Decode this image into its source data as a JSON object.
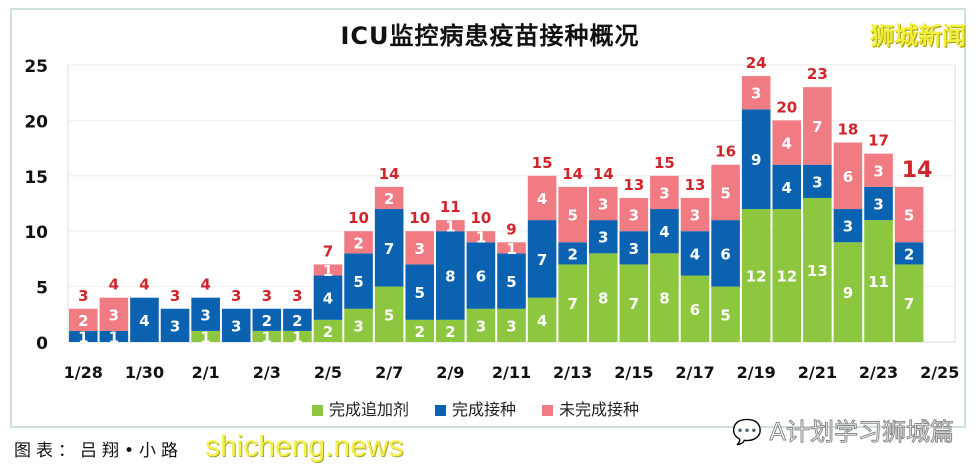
{
  "chart_data": {
    "type": "bar",
    "stacked": true,
    "title": "ICU监控病患疫苗接种概况",
    "categories": [
      "1/28",
      "1/29",
      "1/30",
      "1/31",
      "2/1",
      "2/2",
      "2/3",
      "2/4",
      "2/5",
      "2/6",
      "2/7",
      "2/8",
      "2/9",
      "2/10",
      "2/11",
      "2/12",
      "2/13",
      "2/14",
      "2/15",
      "2/16",
      "2/17",
      "2/18",
      "2/19",
      "2/20",
      "2/21",
      "2/22",
      "2/23",
      "2/24",
      "2/25"
    ],
    "tick_labels": [
      "1/28",
      "1/30",
      "2/1",
      "2/3",
      "2/5",
      "2/7",
      "2/9",
      "2/11",
      "2/13",
      "2/15",
      "2/17",
      "2/19",
      "2/21",
      "2/23",
      "2/25"
    ],
    "series": [
      {
        "name": "完成追加剂",
        "color": "#8dc63f",
        "values": [
          0,
          0,
          0,
          0,
          1,
          0,
          1,
          1,
          2,
          3,
          5,
          2,
          2,
          3,
          3,
          4,
          7,
          8,
          7,
          8,
          6,
          5,
          12,
          12,
          13,
          9,
          11,
          7,
          null
        ]
      },
      {
        "name": "完成接种",
        "color": "#0a62b0",
        "values": [
          1,
          1,
          4,
          3,
          3,
          3,
          2,
          2,
          4,
          5,
          7,
          5,
          8,
          6,
          5,
          7,
          2,
          3,
          3,
          4,
          4,
          6,
          9,
          4,
          3,
          3,
          3,
          2,
          null
        ]
      },
      {
        "name": "未完成接种",
        "color": "#f07b83",
        "values": [
          2,
          3,
          0,
          0,
          0,
          0,
          0,
          0,
          1,
          2,
          2,
          3,
          1,
          1,
          1,
          4,
          5,
          3,
          3,
          3,
          3,
          5,
          3,
          4,
          7,
          6,
          3,
          5,
          null
        ]
      }
    ],
    "totals": [
      3,
      4,
      4,
      3,
      4,
      3,
      3,
      3,
      7,
      10,
      14,
      10,
      11,
      10,
      9,
      15,
      14,
      14,
      13,
      15,
      13,
      16,
      24,
      20,
      23,
      18,
      17,
      14,
      null
    ],
    "yticks": [
      0,
      5,
      10,
      15,
      20,
      25
    ],
    "ylim": [
      0,
      25
    ],
    "grid": true,
    "legend_position": "bottom",
    "total_label_color": "#d0262b"
  },
  "brand": "狮城新闻",
  "credit": "图表：吕翔•小路",
  "watermark": "shicheng.news",
  "wechat_account": "A计划学习狮城篇"
}
